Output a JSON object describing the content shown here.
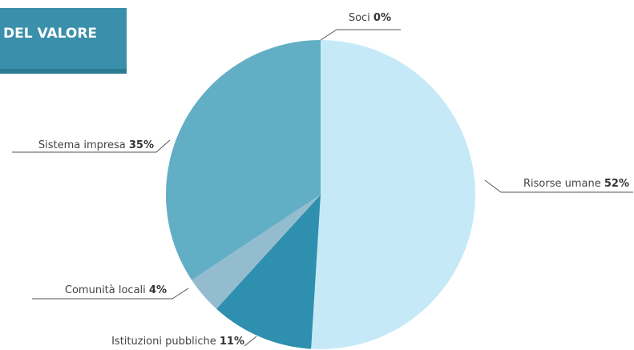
{
  "chart_data": {
    "type": "pie",
    "title": "DEL VALORE",
    "categories": [
      "Risorse umane",
      "Istituzioni pubbliche",
      "Comunità locali",
      "Sistema impresa",
      "Soci"
    ],
    "values": [
      52,
      11,
      4,
      35,
      0
    ],
    "value_labels": [
      "52%",
      "11%",
      "4%",
      "35%",
      "0%"
    ],
    "colors": [
      "#c6e9f8",
      "#2f8fae",
      "#94bccf",
      "#62aec4",
      "#3a8fab"
    ]
  }
}
